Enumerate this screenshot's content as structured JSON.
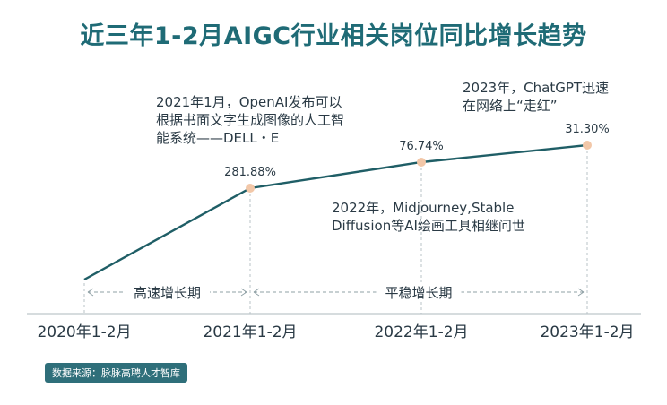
{
  "title": "近三年1-2月AIGC行业相关岗位同比增长趋势",
  "annotations": {
    "a2021": "2021年1月，OpenAI发布可以\n根据书面文字生成图像的人工智\n能系统——DELL・E",
    "a2022": "2022年，Midjourney,Stable\nDiffusion等AI绘画工具相继问世",
    "a2023": "2023年，ChatGPT迅速\n在网络上“走红”"
  },
  "phases": [
    "高速增长期",
    "平稳增长期"
  ],
  "source": "数据来源：脉脉高聘人才智库",
  "colors": {
    "title": "#1f6b76",
    "line": "#1f5e66",
    "marker": "#f2c7a8",
    "badge": "#2f6f7a"
  },
  "chart_data": {
    "type": "line",
    "categories": [
      "2020年1-2月",
      "2021年1-2月",
      "2022年1-2月",
      "2023年1-2月"
    ],
    "values": [
      null,
      281.88,
      76.74,
      31.3
    ],
    "data_labels": [
      "",
      "281.88%",
      "76.74%",
      "31.30%"
    ],
    "title": "近三年1-2月AIGC行业相关岗位同比增长趋势",
    "xlabel": "",
    "ylabel": "",
    "grid": false
  }
}
